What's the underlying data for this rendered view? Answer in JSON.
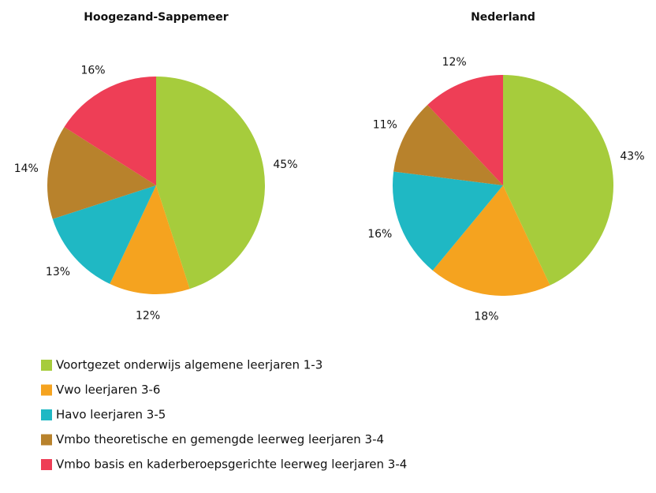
{
  "chart_data": [
    {
      "type": "pie",
      "title": "Hoogezand-Sappemeer",
      "values": [
        45,
        12,
        13,
        14,
        16
      ],
      "value_labels": [
        "45%",
        "12%",
        "13%",
        "14%",
        "16%"
      ]
    },
    {
      "type": "pie",
      "title": "Nederland",
      "values": [
        43,
        18,
        16,
        11,
        12
      ],
      "value_labels": [
        "43%",
        "18%",
        "16%",
        "11%",
        "12%"
      ]
    }
  ],
  "legend": {
    "categories": [
      "Voortgezet onderwijs algemene leerjaren 1-3",
      "Vwo leerjaren 3-6",
      "Havo leerjaren 3-5",
      "Vmbo theoretische en gemengde leerweg leerjaren 3-4",
      "Vmbo basis en kaderberoepsgerichte leerweg leerjaren 3-4"
    ],
    "colors": [
      "#a6cc3c",
      "#f5a31f",
      "#1fb8c4",
      "#b8822c",
      "#ee3e56"
    ]
  }
}
